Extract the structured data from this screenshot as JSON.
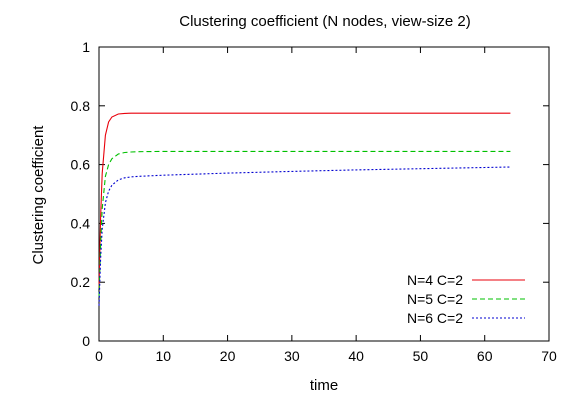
{
  "chart_data": {
    "type": "line",
    "title": "Clustering coefficient (N nodes, view-size 2)",
    "xlabel": "time",
    "ylabel": "Clustering coefficient",
    "xlim": [
      0,
      70
    ],
    "ylim": [
      0,
      1
    ],
    "x_ticks": [
      "0",
      "10",
      "20",
      "30",
      "40",
      "50",
      "60",
      "70"
    ],
    "y_ticks": [
      "0",
      "0.2",
      "0.4",
      "0.6",
      "0.8",
      "1"
    ],
    "legend_position": "bottom-right",
    "grid": false,
    "series": [
      {
        "name": "N=4 C=2",
        "color": "#e8000b",
        "dash": "solid",
        "x": [
          0,
          0.25,
          0.5,
          1,
          1.5,
          2,
          3,
          4,
          5,
          6,
          10,
          20,
          30,
          40,
          50,
          60,
          64
        ],
        "y": [
          0.18,
          0.42,
          0.57,
          0.7,
          0.745,
          0.762,
          0.772,
          0.774,
          0.775,
          0.775,
          0.775,
          0.775,
          0.775,
          0.775,
          0.775,
          0.775,
          0.775
        ]
      },
      {
        "name": "N=5 C=2",
        "color": "#00c000",
        "dash": "dashed",
        "x": [
          0,
          0.25,
          0.5,
          1,
          1.5,
          2,
          3,
          4,
          5,
          6,
          10,
          20,
          30,
          40,
          50,
          60,
          64
        ],
        "y": [
          0.15,
          0.33,
          0.45,
          0.56,
          0.6,
          0.62,
          0.636,
          0.641,
          0.643,
          0.644,
          0.645,
          0.645,
          0.645,
          0.645,
          0.645,
          0.645,
          0.645
        ]
      },
      {
        "name": "N=6 C=2",
        "color": "#0000d0",
        "dash": "dotted",
        "x": [
          0,
          0.25,
          0.5,
          1,
          1.5,
          2,
          3,
          4,
          5,
          6,
          10,
          20,
          30,
          40,
          50,
          60,
          64
        ],
        "y": [
          0.12,
          0.28,
          0.38,
          0.47,
          0.51,
          0.53,
          0.548,
          0.555,
          0.558,
          0.56,
          0.564,
          0.571,
          0.577,
          0.582,
          0.586,
          0.59,
          0.592
        ]
      }
    ]
  }
}
